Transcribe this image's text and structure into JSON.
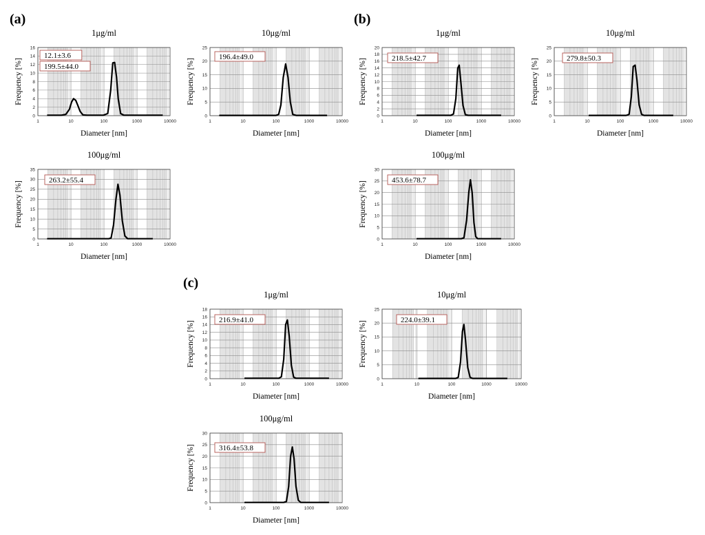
{
  "panels": [
    {
      "label": "(a)"
    },
    {
      "label": "(b)"
    },
    {
      "label": "(c)"
    }
  ],
  "chart_data": [
    {
      "type": "line",
      "panel": "(a)",
      "title": "1μg/ml",
      "xlabel": "Diameter [nm]",
      "ylabel": "Frequency [%]",
      "xscale": "log",
      "xlim": [
        1,
        10000
      ],
      "ylim": [
        0,
        16
      ],
      "yticks": [
        "0",
        "2",
        "4",
        "6",
        "8",
        "10",
        "12",
        "14",
        "16"
      ],
      "xticks": [
        "1",
        "10",
        "100",
        "1000",
        "10000"
      ],
      "annotations": [
        "12.1±3.6",
        "199.5±44.0"
      ],
      "x": [
        1.9,
        3,
        5,
        7,
        9,
        10.5,
        12,
        14,
        16,
        19,
        23,
        30,
        95,
        130,
        160,
        185,
        210,
        240,
        270,
        320,
        400,
        6000
      ],
      "y": [
        0.1,
        0.1,
        0.1,
        0.3,
        1.5,
        3.2,
        4.0,
        3.6,
        2.5,
        1.0,
        0.2,
        0.1,
        0.1,
        0.5,
        6,
        12.4,
        12.5,
        9,
        4,
        0.5,
        0.1,
        0.1
      ]
    },
    {
      "type": "line",
      "panel": "(a)",
      "title": "10μg/ml",
      "xlabel": "Diameter [nm]",
      "ylabel": "Frequency [%]",
      "xscale": "log",
      "xlim": [
        1,
        10000
      ],
      "ylim": [
        0,
        25
      ],
      "yticks": [
        "0",
        "5",
        "10",
        "15",
        "20",
        "25"
      ],
      "xticks": [
        "1",
        "10",
        "100",
        "1000",
        "10000"
      ],
      "annotations": [
        "196.4±49.0"
      ],
      "x": [
        1.9,
        100,
        120,
        140,
        165,
        195,
        230,
        270,
        320,
        400,
        3500
      ],
      "y": [
        0.1,
        0.1,
        0.5,
        4,
        14,
        19,
        14,
        5,
        0.5,
        0.1,
        0.1
      ]
    },
    {
      "type": "line",
      "panel": "(a)",
      "title": "100μg/ml",
      "xlabel": "Diameter [nm]",
      "ylabel": "Frequency [%]",
      "xscale": "log",
      "xlim": [
        1,
        10000
      ],
      "ylim": [
        0,
        35
      ],
      "yticks": [
        "0",
        "5",
        "10",
        "15",
        "20",
        "25",
        "30",
        "35"
      ],
      "xticks": [
        "1",
        "10",
        "100",
        "1000",
        "10000"
      ],
      "annotations": [
        "263.2±55.4"
      ],
      "x": [
        1.9,
        140,
        165,
        195,
        230,
        265,
        305,
        360,
        430,
        520,
        3000
      ],
      "y": [
        0.1,
        0.1,
        0.5,
        7,
        20,
        27.5,
        22,
        9,
        1.5,
        0.1,
        0.1
      ]
    },
    {
      "type": "line",
      "panel": "(b)",
      "title": "1μg/ml",
      "xlabel": "Diameter [nm]",
      "ylabel": "Frequency [%]",
      "xscale": "log",
      "xlim": [
        1,
        10000
      ],
      "ylim": [
        0,
        20
      ],
      "yticks": [
        "0",
        "2",
        "4",
        "6",
        "8",
        "10",
        "12",
        "14",
        "16",
        "18",
        "20"
      ],
      "xticks": [
        "1",
        "10",
        "100",
        "1000",
        "10000"
      ],
      "annotations": [
        "218.5±42.7"
      ],
      "x": [
        11,
        120,
        145,
        170,
        195,
        215,
        240,
        280,
        330,
        400,
        4000
      ],
      "y": [
        0.1,
        0.1,
        0.5,
        5,
        14,
        14.8,
        10,
        3,
        0.3,
        0.1,
        0.1
      ]
    },
    {
      "type": "line",
      "panel": "(b)",
      "title": "10μg/ml",
      "xlabel": "Diameter [nm]",
      "ylabel": "Frequency [%]",
      "xscale": "log",
      "xlim": [
        1,
        10000
      ],
      "ylim": [
        0,
        25
      ],
      "yticks": [
        "0",
        "5",
        "10",
        "15",
        "20",
        "25"
      ],
      "xticks": [
        "1",
        "10",
        "100",
        "1000",
        "10000"
      ],
      "annotations": [
        "279.8±50.3"
      ],
      "x": [
        11,
        150,
        185,
        215,
        245,
        280,
        320,
        370,
        440,
        520,
        4000
      ],
      "y": [
        0.1,
        0.1,
        0.5,
        7,
        18,
        18.5,
        13,
        4,
        0.5,
        0.1,
        0.1
      ]
    },
    {
      "type": "line",
      "panel": "(b)",
      "title": "100μg/ml",
      "xlabel": "Diameter [nm]",
      "ylabel": "Frequency [%]",
      "xscale": "log",
      "xlim": [
        1,
        10000
      ],
      "ylim": [
        0,
        30
      ],
      "yticks": [
        "0",
        "5",
        "10",
        "15",
        "20",
        "25",
        "30"
      ],
      "xticks": [
        "1",
        "10",
        "100",
        "1000",
        "10000"
      ],
      "annotations": [
        "453.6±78.7"
      ],
      "x": [
        11,
        250,
        300,
        360,
        420,
        470,
        530,
        600,
        680,
        780,
        4000
      ],
      "y": [
        0.1,
        0.1,
        0.5,
        8,
        20,
        25.5,
        20,
        7,
        1,
        0.1,
        0.1
      ]
    },
    {
      "type": "line",
      "panel": "(c)",
      "title": "1μg/ml",
      "xlabel": "Diameter [nm]",
      "ylabel": "Frequency [%]",
      "xscale": "log",
      "xlim": [
        1,
        10000
      ],
      "ylim": [
        0,
        18
      ],
      "yticks": [
        "0",
        "2",
        "4",
        "6",
        "8",
        "10",
        "12",
        "14",
        "16",
        "18"
      ],
      "xticks": [
        "1",
        "10",
        "100",
        "1000",
        "10000"
      ],
      "annotations": [
        "216.9±41.0"
      ],
      "x": [
        11,
        120,
        145,
        170,
        195,
        220,
        250,
        290,
        340,
        400,
        4000
      ],
      "y": [
        0.1,
        0.1,
        0.5,
        5,
        14,
        15.2,
        11,
        3.5,
        0.4,
        0.1,
        0.1
      ]
    },
    {
      "type": "line",
      "panel": "(c)",
      "title": "10μg/ml",
      "xlabel": "Diameter [nm]",
      "ylabel": "Frequency [%]",
      "xscale": "log",
      "xlim": [
        1,
        10000
      ],
      "ylim": [
        0,
        25
      ],
      "yticks": [
        "0",
        "5",
        "10",
        "15",
        "20",
        "25"
      ],
      "xticks": [
        "1",
        "10",
        "100",
        "1000",
        "10000"
      ],
      "annotations": [
        "224.0±39.1"
      ],
      "x": [
        11,
        130,
        155,
        180,
        205,
        225,
        250,
        290,
        340,
        400,
        4000
      ],
      "y": [
        0.1,
        0.1,
        0.5,
        6,
        17,
        19.5,
        14,
        4,
        0.5,
        0.1,
        0.1
      ]
    },
    {
      "type": "line",
      "panel": "(c)",
      "title": "100μg/ml",
      "xlabel": "Diameter [nm]",
      "ylabel": "Frequency [%]",
      "xscale": "log",
      "xlim": [
        1,
        10000
      ],
      "ylim": [
        0,
        30
      ],
      "yticks": [
        "0",
        "5",
        "10",
        "15",
        "20",
        "25",
        "30"
      ],
      "xticks": [
        "1",
        "10",
        "100",
        "1000",
        "10000"
      ],
      "annotations": [
        "316.4±53.8"
      ],
      "x": [
        11,
        170,
        205,
        240,
        275,
        310,
        350,
        400,
        470,
        560,
        4000
      ],
      "y": [
        0.1,
        0.1,
        0.5,
        7,
        20,
        24,
        19,
        7,
        1,
        0.1,
        0.1
      ]
    }
  ]
}
